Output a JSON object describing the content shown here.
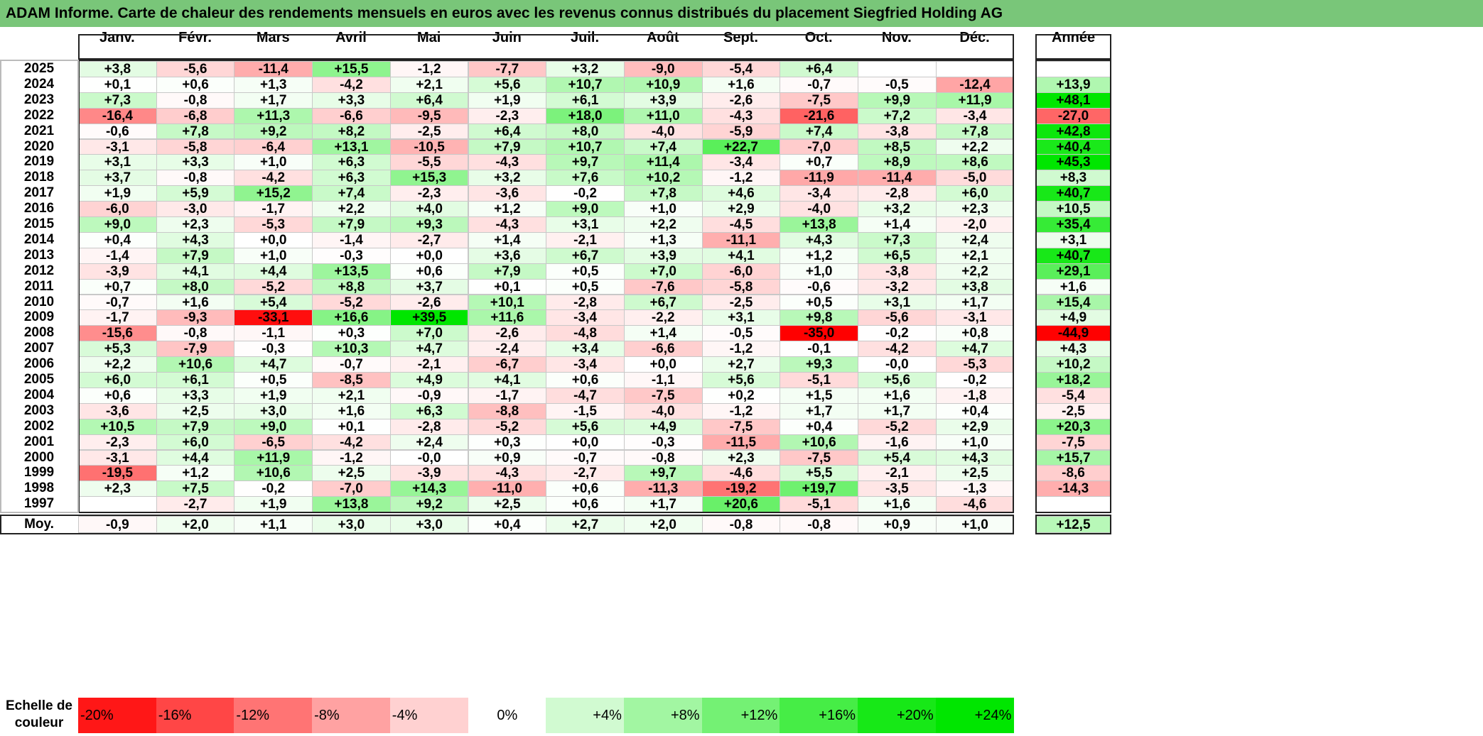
{
  "chart_data": {
    "type": "heatmap",
    "title": "ADAM Informe. Carte de chaleur des rendements mensuels en euros avec les revenus connus distribués du placement Siegfried Holding AG",
    "months": [
      "Janv.",
      "Févr.",
      "Mars",
      "Avril",
      "Mai",
      "Juin",
      "Juil.",
      "Août",
      "Sept.",
      "Oct.",
      "Nov.",
      "Déc."
    ],
    "year_header": "Année",
    "rows": [
      {
        "year": "2025",
        "values": [
          "+3,8",
          "-5,6",
          "-11,4",
          "+15,5",
          "-1,2",
          "-7,7",
          "+3,2",
          "-9,0",
          "-5,4",
          "+6,4",
          "",
          ""
        ],
        "annual": ""
      },
      {
        "year": "2024",
        "values": [
          "+0,1",
          "+0,6",
          "+1,3",
          "-4,2",
          "+2,1",
          "+5,6",
          "+10,7",
          "+10,9",
          "+1,6",
          "-0,7",
          "-0,5",
          "-12,4"
        ],
        "annual": "+13,9"
      },
      {
        "year": "2023",
        "values": [
          "+7,3",
          "-0,8",
          "+1,7",
          "+3,3",
          "+6,4",
          "+1,9",
          "+6,1",
          "+3,9",
          "-2,6",
          "-7,5",
          "+9,9",
          "+11,9"
        ],
        "annual": "+48,1"
      },
      {
        "year": "2022",
        "values": [
          "-16,4",
          "-6,8",
          "+11,3",
          "-6,6",
          "-9,5",
          "-2,3",
          "+18,0",
          "+11,0",
          "-4,3",
          "-21,6",
          "+7,2",
          "-3,4"
        ],
        "annual": "-27,0"
      },
      {
        "year": "2021",
        "values": [
          "-0,6",
          "+7,8",
          "+9,2",
          "+8,2",
          "-2,5",
          "+6,4",
          "+8,0",
          "-4,0",
          "-5,9",
          "+7,4",
          "-3,8",
          "+7,8"
        ],
        "annual": "+42,8"
      },
      {
        "year": "2020",
        "values": [
          "-3,1",
          "-5,8",
          "-6,4",
          "+13,1",
          "-10,5",
          "+7,9",
          "+10,7",
          "+7,4",
          "+22,7",
          "-7,0",
          "+8,5",
          "+2,2"
        ],
        "annual": "+40,4"
      },
      {
        "year": "2019",
        "values": [
          "+3,1",
          "+3,3",
          "+1,0",
          "+6,3",
          "-5,5",
          "-4,3",
          "+9,7",
          "+11,4",
          "-3,4",
          "+0,7",
          "+8,9",
          "+8,6"
        ],
        "annual": "+45,3"
      },
      {
        "year": "2018",
        "values": [
          "+3,7",
          "-0,8",
          "-4,2",
          "+6,3",
          "+15,3",
          "+3,2",
          "+7,6",
          "+10,2",
          "-1,2",
          "-11,9",
          "-11,4",
          "-5,0"
        ],
        "annual": "+8,3"
      },
      {
        "year": "2017",
        "values": [
          "+1,9",
          "+5,9",
          "+15,2",
          "+7,4",
          "-2,3",
          "-3,6",
          "-0,2",
          "+7,8",
          "+4,6",
          "-3,4",
          "-2,8",
          "+6,0"
        ],
        "annual": "+40,7"
      },
      {
        "year": "2016",
        "values": [
          "-6,0",
          "-3,0",
          "-1,7",
          "+2,2",
          "+4,0",
          "+1,2",
          "+9,0",
          "+1,0",
          "+2,9",
          "-4,0",
          "+3,2",
          "+2,3"
        ],
        "annual": "+10,5"
      },
      {
        "year": "2015",
        "values": [
          "+9,0",
          "+2,3",
          "-5,3",
          "+7,9",
          "+9,3",
          "-4,3",
          "+3,1",
          "+2,2",
          "-4,5",
          "+13,8",
          "+1,4",
          "-2,0"
        ],
        "annual": "+35,4"
      },
      {
        "year": "2014",
        "values": [
          "+0,4",
          "+4,3",
          "+0,0",
          "-1,4",
          "-2,7",
          "+1,4",
          "-2,1",
          "+1,3",
          "-11,1",
          "+4,3",
          "+7,3",
          "+2,4"
        ],
        "annual": "+3,1"
      },
      {
        "year": "2013",
        "values": [
          "-1,4",
          "+7,9",
          "+1,0",
          "-0,3",
          "+0,0",
          "+3,6",
          "+6,7",
          "+3,9",
          "+4,1",
          "+1,2",
          "+6,5",
          "+2,1"
        ],
        "annual": "+40,7"
      },
      {
        "year": "2012",
        "values": [
          "-3,9",
          "+4,1",
          "+4,4",
          "+13,5",
          "+0,6",
          "+7,9",
          "+0,5",
          "+7,0",
          "-6,0",
          "+1,0",
          "-3,8",
          "+2,2"
        ],
        "annual": "+29,1"
      },
      {
        "year": "2011",
        "values": [
          "+0,7",
          "+8,0",
          "-5,2",
          "+8,8",
          "+3,7",
          "+0,1",
          "+0,5",
          "-7,6",
          "-5,8",
          "-0,6",
          "-3,2",
          "+3,8"
        ],
        "annual": "+1,6"
      },
      {
        "year": "2010",
        "values": [
          "-0,7",
          "+1,6",
          "+5,4",
          "-5,2",
          "-2,6",
          "+10,1",
          "-2,8",
          "+6,7",
          "-2,5",
          "+0,5",
          "+3,1",
          "+1,7"
        ],
        "annual": "+15,4"
      },
      {
        "year": "2009",
        "values": [
          "-1,7",
          "-9,3",
          "-33,1",
          "+16,6",
          "+39,5",
          "+11,6",
          "-3,4",
          "-2,2",
          "+3,1",
          "+9,8",
          "-5,6",
          "-3,1"
        ],
        "annual": "+4,9"
      },
      {
        "year": "2008",
        "values": [
          "-15,6",
          "-0,8",
          "-1,1",
          "+0,3",
          "+7,0",
          "-2,6",
          "-4,8",
          "+1,4",
          "-0,5",
          "-35,0",
          "-0,2",
          "+0,8"
        ],
        "annual": "-44,9"
      },
      {
        "year": "2007",
        "values": [
          "+5,3",
          "-7,9",
          "-0,3",
          "+10,3",
          "+4,7",
          "-2,4",
          "+3,4",
          "-6,6",
          "-1,2",
          "-0,1",
          "-4,2",
          "+4,7"
        ],
        "annual": "+4,3"
      },
      {
        "year": "2006",
        "values": [
          "+2,2",
          "+10,6",
          "+4,7",
          "-0,7",
          "-2,1",
          "-6,7",
          "-3,4",
          "+0,0",
          "+2,7",
          "+9,3",
          "-0,0",
          "-5,3"
        ],
        "annual": "+10,2"
      },
      {
        "year": "2005",
        "values": [
          "+6,0",
          "+6,1",
          "+0,5",
          "-8,5",
          "+4,9",
          "+4,1",
          "+0,6",
          "-1,1",
          "+5,6",
          "-5,1",
          "+5,6",
          "-0,2"
        ],
        "annual": "+18,2"
      },
      {
        "year": "2004",
        "values": [
          "+0,6",
          "+3,3",
          "+1,9",
          "+2,1",
          "-0,9",
          "-1,7",
          "-4,7",
          "-7,5",
          "+0,2",
          "+1,5",
          "+1,6",
          "-1,8"
        ],
        "annual": "-5,4"
      },
      {
        "year": "2003",
        "values": [
          "-3,6",
          "+2,5",
          "+3,0",
          "+1,6",
          "+6,3",
          "-8,8",
          "-1,5",
          "-4,0",
          "-1,2",
          "+1,7",
          "+1,7",
          "+0,4"
        ],
        "annual": "-2,5"
      },
      {
        "year": "2002",
        "values": [
          "+10,5",
          "+7,9",
          "+9,0",
          "+0,1",
          "-2,8",
          "-5,2",
          "+5,6",
          "+4,9",
          "-7,5",
          "+0,4",
          "-5,2",
          "+2,9"
        ],
        "annual": "+20,3"
      },
      {
        "year": "2001",
        "values": [
          "-2,3",
          "+6,0",
          "-6,5",
          "-4,2",
          "+2,4",
          "+0,3",
          "+0,0",
          "-0,3",
          "-11,5",
          "+10,6",
          "-1,6",
          "+1,0"
        ],
        "annual": "-7,5"
      },
      {
        "year": "2000",
        "values": [
          "-3,1",
          "+4,4",
          "+11,9",
          "-1,2",
          "-0,0",
          "+0,9",
          "-0,7",
          "-0,8",
          "+2,3",
          "-7,5",
          "+5,4",
          "+4,3"
        ],
        "annual": "+15,7"
      },
      {
        "year": "1999",
        "values": [
          "-19,5",
          "+1,2",
          "+10,6",
          "+2,5",
          "-3,9",
          "-4,3",
          "-2,7",
          "+9,7",
          "-4,6",
          "+5,5",
          "-2,1",
          "+2,5"
        ],
        "annual": "-8,6"
      },
      {
        "year": "1998",
        "values": [
          "+2,3",
          "+7,5",
          "-0,2",
          "-7,0",
          "+14,3",
          "-11,0",
          "+0,6",
          "-11,3",
          "-19,2",
          "+19,7",
          "-3,5",
          "-1,3"
        ],
        "annual": "-14,3"
      },
      {
        "year": "1997",
        "values": [
          "",
          "-2,7",
          "+1,9",
          "+13,8",
          "+9,2",
          "+2,5",
          "+0,6",
          "+1,7",
          "+20,6",
          "-5,1",
          "+1,6",
          "-4,6"
        ],
        "annual": ""
      }
    ],
    "average": {
      "label": "Moy.",
      "values": [
        "-0,9",
        "+2,0",
        "+1,1",
        "+3,0",
        "+3,0",
        "+0,4",
        "+2,7",
        "+2,0",
        "-0,8",
        "-0,8",
        "+0,9",
        "+1,0"
      ],
      "annual": "+12,5"
    },
    "color_scale": {
      "label": "Echelle de couleur",
      "ticks": [
        "-20%",
        "-16%",
        "-12%",
        "-8%",
        "-4%",
        "0%",
        "+4%",
        "+8%",
        "+12%",
        "+16%",
        "+20%",
        "+24%"
      ],
      "negative_color": "#ff0000",
      "positive_color": "#00e600",
      "neutral_color": "#ffffff"
    }
  }
}
